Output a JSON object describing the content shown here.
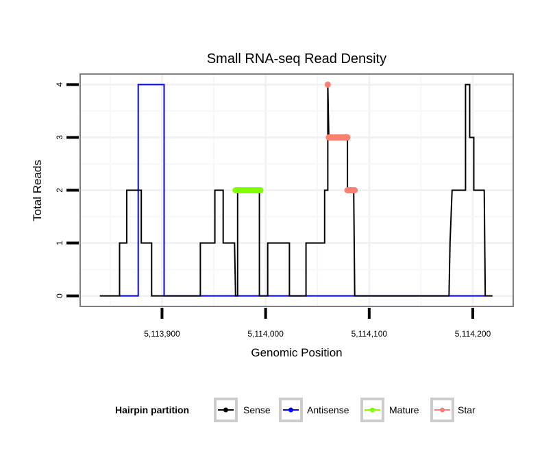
{
  "chart_data": {
    "type": "line",
    "title": "Small RNA-seq Read Density",
    "xlabel": "Genomic Position",
    "ylabel": "Total Reads",
    "xlim": [
      5113821,
      5114239
    ],
    "ylim": [
      -0.2,
      4.2
    ],
    "x_ticks": [
      5113900,
      5114000,
      5114100,
      5114200
    ],
    "x_tick_labels": [
      "5,113,900",
      "5,114,000",
      "5,114,100",
      "5,114,200"
    ],
    "x_minor_grid": [
      5113850,
      5113950,
      5114050,
      5114150
    ],
    "y_ticks": [
      0,
      1,
      2,
      3,
      4
    ],
    "y_tick_labels": [
      "0",
      "1",
      "2",
      "3",
      "4"
    ],
    "y_minor_grid": [
      0.5,
      1.5,
      2.5,
      3.5
    ],
    "grid": true,
    "legend": {
      "title": "Hairpin partition",
      "position": "bottom",
      "entries": [
        {
          "name": "Sense",
          "color": "#000000"
        },
        {
          "name": "Antisense",
          "color": "#0000FF"
        },
        {
          "name": "Mature",
          "color": "#7FFF00"
        },
        {
          "name": "Star",
          "color": "#FA8072"
        }
      ]
    },
    "series": [
      {
        "name": "Antisense",
        "color": "#0000FF",
        "style": "line",
        "points": [
          [
            5113859,
            0
          ],
          [
            5113877,
            0
          ],
          [
            5113877,
            4
          ],
          [
            5113902,
            4
          ],
          [
            5113902,
            0
          ],
          [
            5114212,
            0
          ]
        ]
      },
      {
        "name": "Sense",
        "color": "#000000",
        "style": "line",
        "points": [
          [
            5113840,
            0
          ],
          [
            5113859,
            0
          ],
          [
            5113859,
            1
          ],
          [
            5113866,
            1
          ],
          [
            5113866,
            2
          ],
          [
            5113880,
            2
          ],
          [
            5113880,
            1
          ],
          [
            5113890,
            1
          ],
          [
            5113890,
            0
          ],
          [
            5113937,
            0
          ],
          [
            5113937,
            1
          ],
          [
            5113951,
            1
          ],
          [
            5113951,
            2
          ],
          [
            5113959,
            2
          ],
          [
            5113959,
            1
          ],
          [
            5113970,
            1
          ],
          [
            5113971,
            0
          ],
          [
            5113973,
            0
          ],
          [
            5113973,
            2
          ],
          [
            5113994,
            2
          ],
          [
            5113994,
            0
          ],
          [
            5114002,
            0
          ],
          [
            5114002,
            1
          ],
          [
            5114023,
            1
          ],
          [
            5114023,
            0
          ],
          [
            5114039,
            0
          ],
          [
            5114039,
            1
          ],
          [
            5114057,
            1
          ],
          [
            5114057,
            2
          ],
          [
            5114060,
            2
          ],
          [
            5114060,
            4
          ],
          [
            5114061,
            3
          ],
          [
            5114079,
            3
          ],
          [
            5114079,
            2
          ],
          [
            5114085,
            2
          ],
          [
            5114086,
            0
          ],
          [
            5114177,
            0
          ],
          [
            5114178,
            1
          ],
          [
            5114180,
            2
          ],
          [
            5114193,
            2
          ],
          [
            5114193,
            4
          ],
          [
            5114197,
            4
          ],
          [
            5114197,
            3
          ],
          [
            5114201,
            3
          ],
          [
            5114201,
            2
          ],
          [
            5114211,
            2
          ],
          [
            5114212,
            0
          ],
          [
            5114219,
            0
          ]
        ]
      },
      {
        "name": "Mature",
        "color": "#7FFF00",
        "style": "points",
        "segments": [
          {
            "x_start": 5113971,
            "x_end": 5113995,
            "y": 2
          }
        ]
      },
      {
        "name": "Star",
        "color": "#FA8072",
        "style": "points",
        "segments": [
          {
            "x_start": 5114060,
            "x_end": 5114060,
            "y": 4
          },
          {
            "x_start": 5114061,
            "x_end": 5114079,
            "y": 3
          },
          {
            "x_start": 5114079,
            "x_end": 5114086,
            "y": 2
          }
        ]
      }
    ]
  }
}
